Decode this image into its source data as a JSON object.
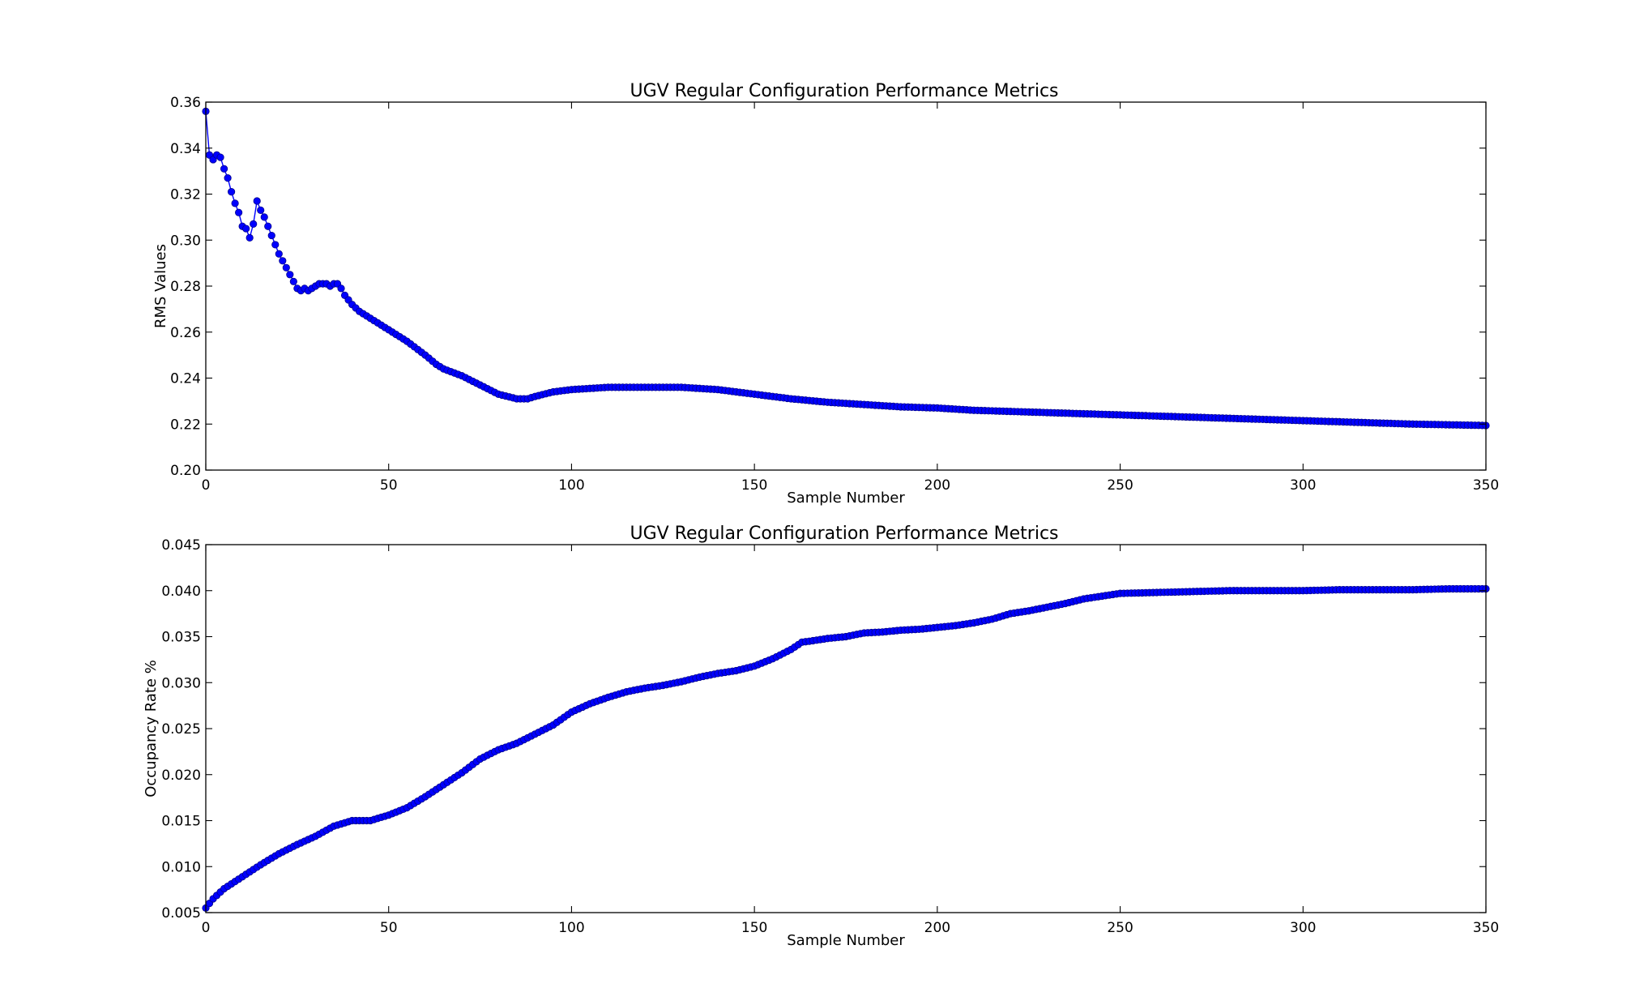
{
  "colors": {
    "series": "#0000ff",
    "marker_edge": "#00008b",
    "axes": "#000000",
    "background": "#ffffff"
  },
  "chart_data": [
    {
      "type": "line",
      "title": "UGV Regular Configuration Performance  Metrics",
      "xlabel": "Sample Number",
      "ylabel": "RMS Values",
      "xlim": [
        0,
        350
      ],
      "ylim": [
        0.2,
        0.36
      ],
      "xticks": [
        "0",
        "50",
        "100",
        "150",
        "200",
        "250",
        "300",
        "350"
      ],
      "yticks": [
        "0.20",
        "0.22",
        "0.24",
        "0.26",
        "0.28",
        "0.30",
        "0.32",
        "0.34",
        "0.36"
      ],
      "grid": false,
      "marker": "circle",
      "series": [
        {
          "x": [
            0,
            1,
            2,
            3,
            4,
            5,
            6,
            7,
            8,
            9,
            10,
            11,
            12,
            13,
            14,
            15,
            16,
            17,
            18,
            19,
            20,
            21,
            22,
            23,
            24,
            25,
            26,
            27,
            28,
            29,
            30,
            31,
            32,
            33,
            34,
            35,
            36,
            37,
            38,
            40,
            42,
            45,
            50,
            55,
            60,
            63,
            65,
            70,
            75,
            80,
            85,
            88,
            90,
            95,
            100,
            110,
            120,
            125,
            130,
            140,
            150,
            160,
            170,
            180,
            190,
            200,
            210,
            220,
            230,
            240,
            250,
            260,
            270,
            280,
            290,
            300,
            310,
            320,
            330,
            340,
            350
          ],
          "y": [
            0.356,
            0.337,
            0.335,
            0.337,
            0.336,
            0.331,
            0.327,
            0.321,
            0.316,
            0.312,
            0.306,
            0.305,
            0.301,
            0.307,
            0.317,
            0.313,
            0.31,
            0.306,
            0.302,
            0.298,
            0.294,
            0.291,
            0.288,
            0.285,
            0.282,
            0.279,
            0.278,
            0.279,
            0.278,
            0.279,
            0.28,
            0.281,
            0.281,
            0.281,
            0.28,
            0.281,
            0.281,
            0.279,
            0.276,
            0.272,
            0.269,
            0.266,
            0.261,
            0.256,
            0.25,
            0.246,
            0.244,
            0.241,
            0.237,
            0.233,
            0.231,
            0.231,
            0.232,
            0.234,
            0.235,
            0.236,
            0.236,
            0.236,
            0.236,
            0.235,
            0.233,
            0.231,
            0.2295,
            0.2285,
            0.2275,
            0.227,
            0.226,
            0.2255,
            0.225,
            0.2245,
            0.224,
            0.2235,
            0.223,
            0.2225,
            0.222,
            0.2215,
            0.221,
            0.2205,
            0.22,
            0.2197,
            0.2194
          ]
        }
      ]
    },
    {
      "type": "line",
      "title": "UGV Regular Configuration Performance  Metrics",
      "xlabel": "Sample Number",
      "ylabel": "Occupancy Rate  %",
      "xlim": [
        0,
        350
      ],
      "ylim": [
        0.005,
        0.045
      ],
      "xticks": [
        "0",
        "50",
        "100",
        "150",
        "200",
        "250",
        "300",
        "350"
      ],
      "yticks": [
        "0.005",
        "0.010",
        "0.015",
        "0.020",
        "0.025",
        "0.030",
        "0.035",
        "0.040",
        "0.045"
      ],
      "grid": false,
      "marker": "circle",
      "series": [
        {
          "x": [
            0,
            2,
            5,
            10,
            15,
            20,
            25,
            30,
            35,
            40,
            45,
            50,
            55,
            60,
            65,
            70,
            75,
            80,
            85,
            90,
            95,
            100,
            105,
            110,
            115,
            120,
            125,
            130,
            135,
            140,
            145,
            150,
            155,
            160,
            163,
            165,
            170,
            175,
            180,
            185,
            190,
            195,
            200,
            205,
            210,
            215,
            220,
            225,
            230,
            235,
            240,
            245,
            250,
            260,
            270,
            280,
            290,
            300,
            310,
            320,
            330,
            340,
            350
          ],
          "y": [
            0.0055,
            0.0065,
            0.0076,
            0.0089,
            0.0102,
            0.0114,
            0.0124,
            0.0133,
            0.0144,
            0.015,
            0.015,
            0.0156,
            0.0164,
            0.0176,
            0.0189,
            0.0202,
            0.0217,
            0.0227,
            0.0234,
            0.0244,
            0.0254,
            0.0268,
            0.0277,
            0.0284,
            0.029,
            0.0294,
            0.0297,
            0.0301,
            0.0306,
            0.031,
            0.0313,
            0.0318,
            0.0326,
            0.0336,
            0.0344,
            0.0345,
            0.0348,
            0.035,
            0.0354,
            0.0355,
            0.0357,
            0.0358,
            0.036,
            0.0362,
            0.0365,
            0.0369,
            0.0375,
            0.0378,
            0.0382,
            0.0386,
            0.0391,
            0.0394,
            0.0397,
            0.0398,
            0.0399,
            0.04,
            0.04,
            0.04,
            0.0401,
            0.0401,
            0.0401,
            0.0402,
            0.0402
          ]
        }
      ]
    }
  ]
}
